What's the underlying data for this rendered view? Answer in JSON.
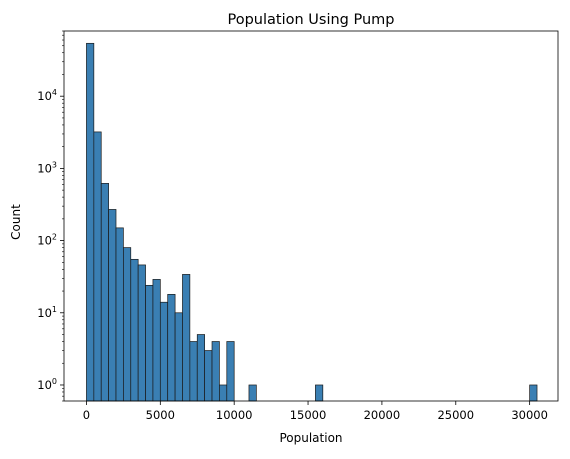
{
  "chart_data": {
    "type": "bar",
    "title": "Population Using Pump",
    "xlabel": "Population",
    "ylabel": "Count",
    "x_scale": "linear",
    "y_scale": "log",
    "xlim": [
      -1520,
      31920
    ],
    "ylim": [
      0.6,
      80000
    ],
    "grid": false,
    "legend": "none",
    "bar_color": "#3a7fb3",
    "edge_color": "#1a1a1a",
    "bin_width": 500,
    "bins": [
      {
        "start": 0,
        "end": 500,
        "count": 54000
      },
      {
        "start": 500,
        "end": 1000,
        "count": 3200
      },
      {
        "start": 1000,
        "end": 1500,
        "count": 620
      },
      {
        "start": 1500,
        "end": 2000,
        "count": 270
      },
      {
        "start": 2000,
        "end": 2500,
        "count": 150
      },
      {
        "start": 2500,
        "end": 3000,
        "count": 80
      },
      {
        "start": 3000,
        "end": 3500,
        "count": 55
      },
      {
        "start": 3500,
        "end": 4000,
        "count": 46
      },
      {
        "start": 4000,
        "end": 4500,
        "count": 24
      },
      {
        "start": 4500,
        "end": 5000,
        "count": 29
      },
      {
        "start": 5000,
        "end": 5500,
        "count": 14
      },
      {
        "start": 5500,
        "end": 6000,
        "count": 18
      },
      {
        "start": 6000,
        "end": 6500,
        "count": 10
      },
      {
        "start": 6500,
        "end": 7000,
        "count": 34
      },
      {
        "start": 7000,
        "end": 7500,
        "count": 4
      },
      {
        "start": 7500,
        "end": 8000,
        "count": 5
      },
      {
        "start": 8000,
        "end": 8500,
        "count": 3
      },
      {
        "start": 8500,
        "end": 9000,
        "count": 4
      },
      {
        "start": 9000,
        "end": 9500,
        "count": 1
      },
      {
        "start": 9500,
        "end": 10000,
        "count": 4
      },
      {
        "start": 11000,
        "end": 11500,
        "count": 1
      },
      {
        "start": 15500,
        "end": 16000,
        "count": 1
      },
      {
        "start": 30000,
        "end": 30500,
        "count": 1
      }
    ],
    "x_ticks": [
      {
        "value": 0,
        "label": "0"
      },
      {
        "value": 5000,
        "label": "5000"
      },
      {
        "value": 10000,
        "label": "10000"
      },
      {
        "value": 15000,
        "label": "15000"
      },
      {
        "value": 20000,
        "label": "20000"
      },
      {
        "value": 25000,
        "label": "25000"
      },
      {
        "value": 30000,
        "label": "30000"
      }
    ],
    "y_ticks": [
      {
        "value": 1,
        "base": "10",
        "exp": "0"
      },
      {
        "value": 10,
        "base": "10",
        "exp": "1"
      },
      {
        "value": 100,
        "base": "10",
        "exp": "2"
      },
      {
        "value": 1000,
        "base": "10",
        "exp": "3"
      },
      {
        "value": 10000,
        "base": "10",
        "exp": "4"
      }
    ]
  }
}
